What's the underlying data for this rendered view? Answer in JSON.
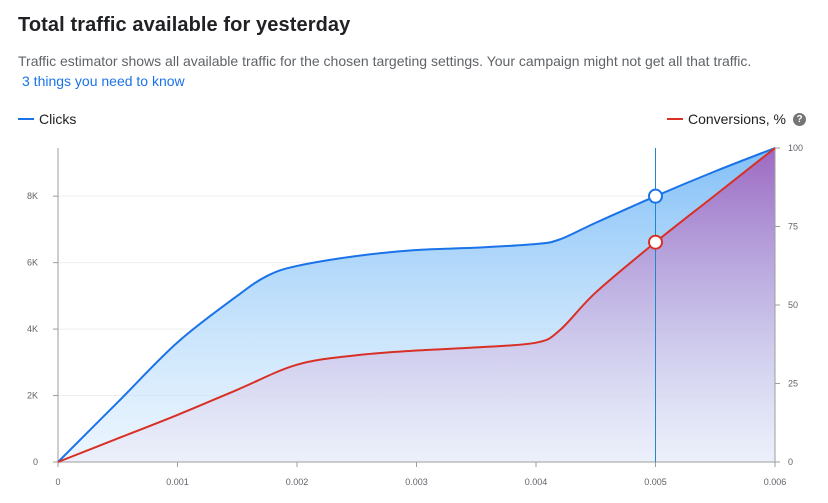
{
  "header": {
    "title": "Total traffic available for yesterday",
    "description": "Traffic estimator shows all available traffic for the chosen targeting settings. Your campaign might not get all that traffic.",
    "link_text": "3 things you need to know"
  },
  "legend": {
    "left": {
      "label": "Clicks",
      "color": "#1a73e8"
    },
    "right": {
      "label": "Conversions, %",
      "color": "#d93025",
      "help_icon": "help-icon",
      "help_glyph": "?"
    }
  },
  "chart_data": {
    "type": "area",
    "x_ticks": [
      "0",
      "0.001",
      "0.002",
      "0.003",
      "0.004",
      "0.005",
      "0.006"
    ],
    "x_range": [
      0,
      0.006
    ],
    "y_left_ticks": [
      "0",
      "2K",
      "4K",
      "6K",
      "8K"
    ],
    "y_left_range": [
      0,
      9450
    ],
    "y_right_ticks": [
      "0",
      "25",
      "50",
      "75",
      "100"
    ],
    "y_right_range": [
      0,
      100
    ],
    "series": [
      {
        "name": "Clicks",
        "axis": "left",
        "color": "#1a73e8",
        "x": [
          0,
          0.0005,
          0.001,
          0.0015,
          0.00175,
          0.002,
          0.0025,
          0.003,
          0.0035,
          0.004,
          0.0042,
          0.0045,
          0.005,
          0.0055,
          0.006
        ],
        "y": [
          0,
          1800,
          3600,
          5000,
          5600,
          5900,
          6200,
          6380,
          6450,
          6560,
          6700,
          7200,
          8000,
          8750,
          9450
        ]
      },
      {
        "name": "Conversions, %",
        "axis": "right",
        "color": "#d93025",
        "x": [
          0,
          0.0005,
          0.001,
          0.0015,
          0.002,
          0.0025,
          0.003,
          0.0035,
          0.004,
          0.0042,
          0.0045,
          0.005,
          0.0055,
          0.006
        ],
        "y": [
          0,
          7.5,
          15,
          23,
          31,
          34,
          35.5,
          36.5,
          38,
          42,
          54,
          70,
          85,
          100
        ]
      }
    ],
    "marker": {
      "x": 0.005,
      "clicks": 8000,
      "conversions": 70
    },
    "grid": true
  }
}
